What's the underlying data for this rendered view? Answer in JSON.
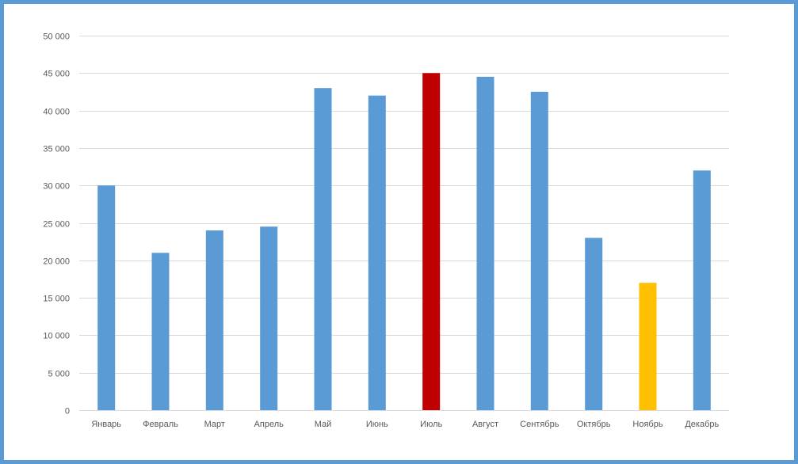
{
  "chart_data": {
    "type": "bar",
    "title": "",
    "xlabel": "",
    "ylabel": "",
    "categories": [
      "Январь",
      "Февраль",
      "Март",
      "Апрель",
      "Май",
      "Июнь",
      "Июль",
      "Август",
      "Сентябрь",
      "Октябрь",
      "Ноябрь",
      "Декабрь"
    ],
    "values": [
      30000,
      21000,
      24000,
      24500,
      43000,
      42000,
      45000,
      44500,
      42500,
      23000,
      17000,
      32000
    ],
    "ylim": [
      0,
      50000
    ],
    "yticks": [
      0,
      5000,
      10000,
      15000,
      20000,
      25000,
      30000,
      35000,
      40000,
      45000,
      50000
    ],
    "ytick_labels": [
      "0",
      "5 000",
      "10 000",
      "15 000",
      "20 000",
      "25 000",
      "30 000",
      "35 000",
      "40 000",
      "45 000",
      "50 000"
    ],
    "grid": true,
    "legend": "none",
    "colors": {
      "default": "#5b9bd5",
      "highlight_max": "#c00000",
      "highlight_min": "#ffc000",
      "frame": "#5b9bd5",
      "gridline": "#d9d9d9",
      "tick_text": "#595959"
    },
    "bar_colors": [
      "#5b9bd5",
      "#5b9bd5",
      "#5b9bd5",
      "#5b9bd5",
      "#5b9bd5",
      "#5b9bd5",
      "#c00000",
      "#5b9bd5",
      "#5b9bd5",
      "#5b9bd5",
      "#ffc000",
      "#5b9bd5"
    ]
  }
}
